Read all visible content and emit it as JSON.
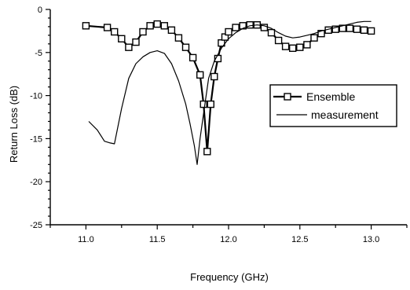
{
  "chart_data": {
    "type": "line",
    "xlabel": "Frequency (GHz)",
    "ylabel": "Return Loss (dB)",
    "xlim": [
      10.75,
      13.25
    ],
    "ylim": [
      -25,
      0
    ],
    "xticks": [
      "11.0",
      "11.5",
      "12.0",
      "12.5",
      "13.0"
    ],
    "xtick_values": [
      11.0,
      11.5,
      12.0,
      12.5,
      13.0
    ],
    "yticks": [
      "0",
      "-5",
      "-10",
      "-15",
      "-20",
      "-25"
    ],
    "ytick_values": [
      0,
      -5,
      -10,
      -15,
      -20,
      -25
    ],
    "grid": false,
    "legend_position": "right",
    "series": [
      {
        "name": "Ensemble",
        "marker": "square",
        "line_width": 2.2,
        "x": [
          11.0,
          11.15,
          11.2,
          11.25,
          11.3,
          11.35,
          11.4,
          11.45,
          11.5,
          11.55,
          11.6,
          11.65,
          11.7,
          11.75,
          11.8,
          11.825,
          11.85,
          11.875,
          11.9,
          11.925,
          11.95,
          11.975,
          12.0,
          12.05,
          12.1,
          12.15,
          12.2,
          12.25,
          12.3,
          12.35,
          12.4,
          12.45,
          12.5,
          12.55,
          12.6,
          12.65,
          12.7,
          12.75,
          12.8,
          12.85,
          12.9,
          12.95,
          13.0
        ],
        "y": [
          -1.9,
          -2.1,
          -2.6,
          -3.4,
          -4.4,
          -3.8,
          -2.6,
          -1.9,
          -1.7,
          -1.9,
          -2.4,
          -3.3,
          -4.4,
          -5.6,
          -7.6,
          -11.0,
          -16.5,
          -11.0,
          -7.8,
          -5.7,
          -3.9,
          -3.2,
          -2.6,
          -2.1,
          -1.9,
          -1.8,
          -1.8,
          -2.1,
          -2.7,
          -3.6,
          -4.3,
          -4.5,
          -4.4,
          -4.1,
          -3.3,
          -2.8,
          -2.4,
          -2.3,
          -2.2,
          -2.2,
          -2.3,
          -2.4,
          -2.5
        ]
      },
      {
        "name": "measurement",
        "marker": "none",
        "line_width": 1.2,
        "x": [
          11.02,
          11.08,
          11.13,
          11.17,
          11.2,
          11.25,
          11.3,
          11.35,
          11.4,
          11.45,
          11.5,
          11.55,
          11.6,
          11.65,
          11.7,
          11.73,
          11.76,
          11.78,
          11.8,
          11.83,
          11.86,
          11.9,
          11.95,
          12.0,
          12.05,
          12.1,
          12.15,
          12.2,
          12.25,
          12.3,
          12.35,
          12.4,
          12.45,
          12.5,
          12.55,
          12.6,
          12.65,
          12.7,
          12.75,
          12.8,
          12.85,
          12.9,
          12.95,
          13.0
        ],
        "y": [
          -13.0,
          -14.0,
          -15.3,
          -15.5,
          -15.6,
          -11.5,
          -8.0,
          -6.3,
          -5.5,
          -5.0,
          -4.8,
          -5.1,
          -6.3,
          -8.3,
          -11.0,
          -13.3,
          -15.8,
          -18.0,
          -15.0,
          -11.5,
          -8.0,
          -6.0,
          -4.5,
          -3.4,
          -2.7,
          -2.2,
          -1.9,
          -1.8,
          -1.9,
          -2.2,
          -2.7,
          -3.1,
          -3.3,
          -3.2,
          -3.0,
          -2.8,
          -2.5,
          -2.3,
          -2.1,
          -1.9,
          -1.7,
          -1.5,
          -1.4,
          -1.4
        ]
      }
    ]
  }
}
